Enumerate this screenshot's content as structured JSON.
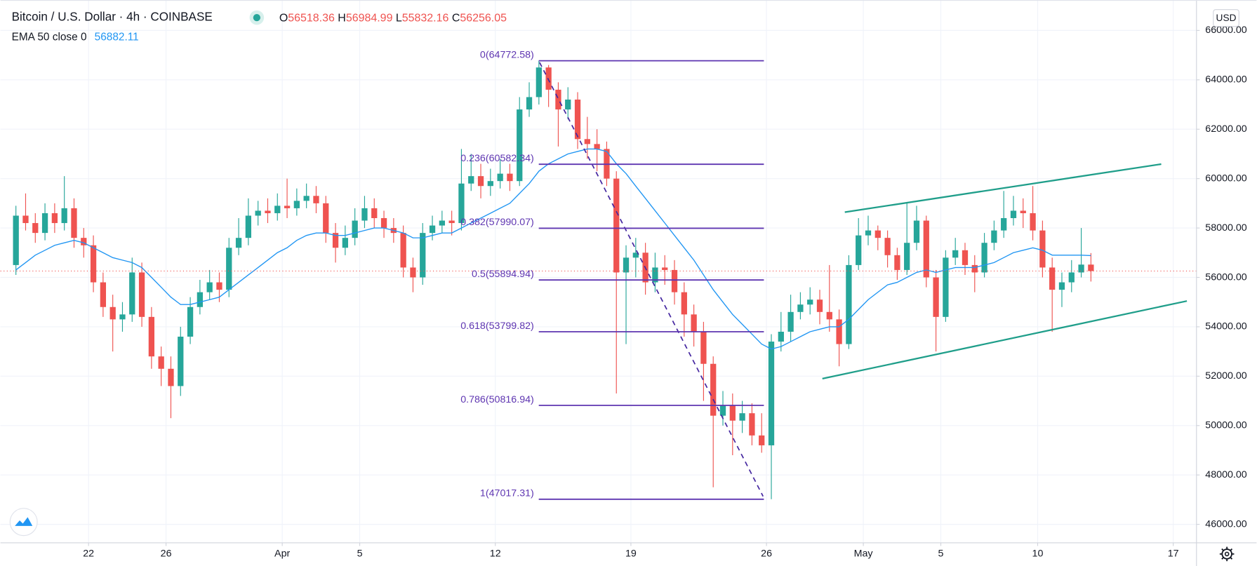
{
  "chart_data": {
    "type": "candlestick",
    "title": "Bitcoin / U.S. Dollar · 4h · COINBASE",
    "ohlc_labels": {
      "open": "O",
      "high": "H",
      "low": "L",
      "close": "C"
    },
    "currency": "USD",
    "up_color": "#26a69a",
    "down_color": "#ef5350",
    "open": [
      56500,
      58500,
      58200,
      57800,
      58600,
      58200,
      58800,
      57600,
      57300,
      55800,
      54800,
      54300,
      54500,
      56200,
      54400,
      52800,
      52300,
      51600,
      53600,
      54800,
      55400,
      55800,
      55500,
      57200,
      57600,
      58500,
      58700,
      58600,
      58900,
      58800,
      59100,
      59300,
      59000,
      57800,
      57200,
      57600,
      58300,
      58800,
      58400,
      58000,
      57800,
      56400,
      56000,
      57800,
      58100,
      58300,
      58200,
      59800,
      60100,
      59700,
      59900,
      60200,
      59900,
      62800,
      63300,
      64500,
      63600,
      62800,
      63200,
      61600,
      61400,
      61200,
      60000,
      56200,
      56800,
      57000,
      55800,
      56400,
      56300,
      55400,
      54500,
      53800,
      52500,
      50400,
      50800,
      50200,
      50500,
      49600,
      49200,
      53400,
      53800,
      54600,
      54900,
      55100,
      54600,
      54300,
      53300,
      56500,
      57700,
      57900,
      57600,
      56900,
      56300,
      57400,
      58300,
      56000,
      54400,
      56800,
      57100,
      56500,
      56200,
      57400,
      57900,
      58400,
      58700,
      58600,
      57900,
      56400,
      55500,
      55800,
      56200,
      56518.36
    ],
    "high": [
      58900,
      59400,
      58600,
      59000,
      59000,
      60100,
      59200,
      58000,
      57700,
      56200,
      55300,
      55000,
      56800,
      56600,
      54800,
      53200,
      52800,
      54000,
      55200,
      55900,
      56300,
      56200,
      57600,
      58400,
      59200,
      59100,
      59200,
      59400,
      60000,
      59600,
      59800,
      59700,
      59300,
      58200,
      58100,
      58800,
      59300,
      59200,
      58700,
      58400,
      58100,
      56800,
      58200,
      58500,
      58700,
      58700,
      61200,
      61000,
      60600,
      60400,
      60800,
      60600,
      63300,
      63900,
      64772.58,
      64600,
      63900,
      63700,
      63500,
      62500,
      62000,
      61500,
      60300,
      57300,
      57600,
      57400,
      57000,
      56900,
      56700,
      55800,
      54900,
      54200,
      52800,
      51400,
      51300,
      51000,
      50900,
      50500,
      53700,
      54600,
      55300,
      55400,
      55600,
      55500,
      56500,
      54700,
      56900,
      58400,
      58500,
      58100,
      57900,
      57200,
      59000,
      58900,
      58500,
      56300,
      57100,
      57600,
      57400,
      56900,
      57800,
      58300,
      59500,
      59300,
      59200,
      59700,
      58300,
      56800,
      56200,
      56700,
      58000,
      56984.99
    ],
    "low": [
      56100,
      57900,
      57400,
      57500,
      57800,
      57900,
      57200,
      56800,
      55400,
      54400,
      53000,
      53800,
      54200,
      54000,
      52300,
      51600,
      50300,
      51200,
      53300,
      54500,
      55100,
      55000,
      55200,
      56900,
      57300,
      58100,
      58200,
      58300,
      58400,
      58500,
      58800,
      58600,
      57400,
      56600,
      56900,
      57300,
      58000,
      58000,
      57600,
      57400,
      56000,
      55400,
      55700,
      57500,
      57800,
      57700,
      57900,
      59500,
      59200,
      59300,
      59600,
      59500,
      59700,
      62500,
      63000,
      62900,
      61300,
      62400,
      61200,
      60800,
      60300,
      59700,
      51300,
      53300,
      56000,
      55300,
      55400,
      55700,
      54900,
      53600,
      53200,
      51000,
      47500,
      50000,
      48800,
      49700,
      49200,
      48900,
      47017.31,
      53000,
      53400,
      54300,
      54500,
      54100,
      53800,
      52400,
      53100,
      56300,
      57300,
      57100,
      56400,
      55900,
      56100,
      57100,
      55600,
      53000,
      54200,
      56500,
      56100,
      55400,
      56000,
      57100,
      57600,
      58100,
      58000,
      57500,
      56000,
      53800,
      54800,
      55400,
      56000,
      55832.16
    ],
    "close": [
      58500,
      58200,
      57800,
      58600,
      58200,
      58800,
      57600,
      57300,
      55800,
      54800,
      54300,
      54500,
      56200,
      54400,
      52800,
      52300,
      51600,
      53600,
      54800,
      55400,
      55800,
      55500,
      57200,
      57600,
      58500,
      58700,
      58600,
      58900,
      58800,
      59100,
      59300,
      59000,
      57800,
      57200,
      57600,
      58300,
      58800,
      58400,
      58000,
      57800,
      56400,
      56000,
      57800,
      58100,
      58300,
      58200,
      59800,
      60100,
      59700,
      59900,
      60200,
      59900,
      62800,
      63300,
      64500,
      63600,
      62800,
      63200,
      61600,
      61400,
      61200,
      60000,
      56200,
      56800,
      57000,
      55800,
      56400,
      56300,
      55400,
      54500,
      53800,
      52500,
      50400,
      50800,
      50200,
      50500,
      49600,
      49200,
      53400,
      53800,
      54600,
      54900,
      55100,
      54600,
      54300,
      53300,
      56500,
      57700,
      57900,
      57600,
      56900,
      56300,
      57400,
      58300,
      56000,
      54400,
      56800,
      57100,
      56500,
      56200,
      57400,
      57900,
      58400,
      58700,
      58600,
      57900,
      56400,
      55500,
      55800,
      56200,
      56518.36,
      56256.05
    ],
    "ema": {
      "name": "EMA 50 close 0",
      "color": "#2196f3",
      "values": [
        56300,
        56600,
        56900,
        57100,
        57300,
        57400,
        57500,
        57400,
        57200,
        57000,
        56800,
        56700,
        56600,
        56400,
        56000,
        55600,
        55200,
        54900,
        54900,
        55000,
        55100,
        55200,
        55500,
        55800,
        56100,
        56400,
        56700,
        57000,
        57200,
        57500,
        57700,
        57800,
        57800,
        57700,
        57700,
        57800,
        57900,
        58000,
        58000,
        57900,
        57800,
        57600,
        57600,
        57700,
        57800,
        57800,
        58000,
        58200,
        58400,
        58600,
        58800,
        59000,
        59400,
        59800,
        60300,
        60600,
        60800,
        61000,
        61100,
        61200,
        61200,
        61100,
        60600,
        60200,
        59700,
        59200,
        58700,
        58200,
        57700,
        57200,
        56700,
        56100,
        55500,
        55000,
        54500,
        54100,
        53700,
        53300,
        53100,
        53200,
        53400,
        53600,
        53800,
        53900,
        54000,
        54000,
        54300,
        54700,
        55100,
        55400,
        55700,
        55800,
        56000,
        56200,
        56300,
        56200,
        56300,
        56400,
        56400,
        56400,
        56500,
        56600,
        56800,
        57000,
        57100,
        57200,
        57100,
        56900,
        56900,
        56900,
        56900,
        56882.11
      ]
    },
    "fib": {
      "color": "#5e35b1",
      "levels": [
        {
          "value": 64772.58,
          "label": "0(64772.58)"
        },
        {
          "value": 60582.34,
          "label": "0.236(60582.34)"
        },
        {
          "value": 57990.07,
          "label": "0.382(57990.07)"
        },
        {
          "value": 55894.94,
          "label": "0.5(55894.94)"
        },
        {
          "value": 53799.82,
          "label": "0.618(53799.82)"
        },
        {
          "value": 50816.94,
          "label": "0.786(50816.94)"
        },
        {
          "value": 47017.31,
          "label": "1(47017.31)"
        }
      ]
    },
    "xlim": [
      -1.1,
      122.4
    ],
    "xticks": [
      {
        "value": 8,
        "label": "22"
      },
      {
        "value": 16,
        "label": "26"
      },
      {
        "value": 28,
        "label": "Apr"
      },
      {
        "value": 36,
        "label": "5"
      },
      {
        "value": 50,
        "label": "12"
      },
      {
        "value": 64,
        "label": "19"
      },
      {
        "value": 78,
        "label": "26"
      },
      {
        "value": 88,
        "label": "May"
      },
      {
        "value": 96,
        "label": "5"
      },
      {
        "value": 106,
        "label": "10"
      },
      {
        "value": 120,
        "label": "17"
      }
    ],
    "ylim": [
      45254,
      67232
    ],
    "yticks": [
      {
        "value": 46000,
        "label": "46000.00"
      },
      {
        "value": 48000,
        "label": "48000.00"
      },
      {
        "value": 50000,
        "label": "50000.00"
      },
      {
        "value": 52000,
        "label": "52000.00"
      },
      {
        "value": 54000,
        "label": "54000.00"
      },
      {
        "value": 56000,
        "label": "56000.00"
      },
      {
        "value": 58000,
        "label": "58000.00"
      },
      {
        "value": 60000,
        "label": "60000.00"
      },
      {
        "value": 62000,
        "label": "62000.00"
      },
      {
        "value": 64000,
        "label": "64000.00"
      },
      {
        "value": 66000,
        "label": "66000.00"
      }
    ],
    "grid": true
  }
}
